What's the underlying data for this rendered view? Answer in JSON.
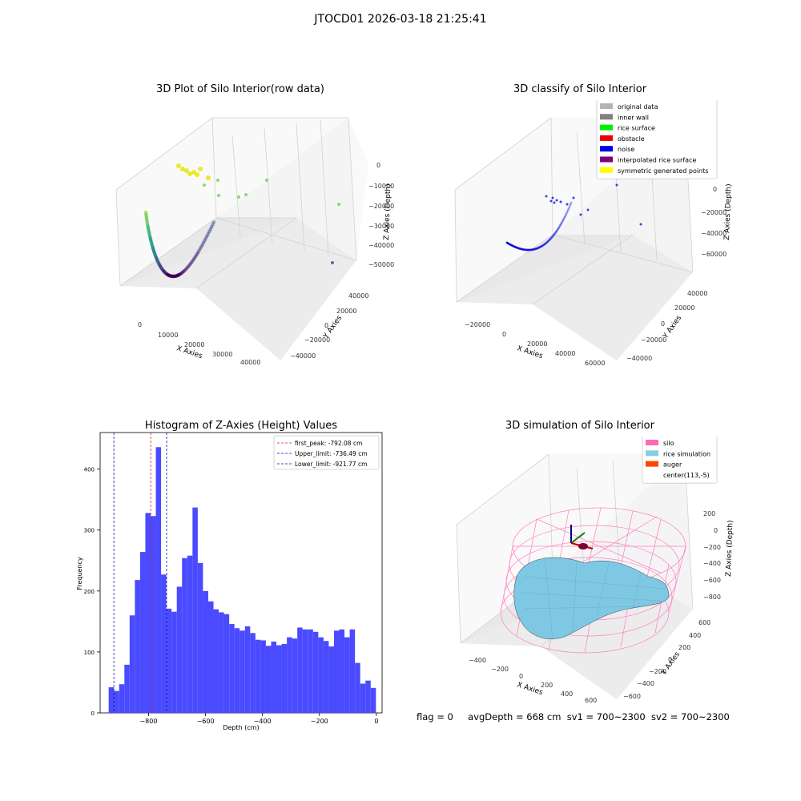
{
  "suptitle": "JTOCD01 2026-03-18 21:25:41",
  "colors": {
    "hist_bar": "#4a4aff",
    "peak_line": "#e02020",
    "limit_line": "#1010a0",
    "grid": "#d0d0d0",
    "pane": "#f2f2f2",
    "wire": "#ff80c0",
    "rice": "#7ec8e3"
  },
  "chart_data": [
    {
      "type": "scatter",
      "projection": "3d",
      "title": "3D Plot of Silo Interior(row data)",
      "xlabel": "X Axies",
      "ylabel": "Y Axies",
      "zlabel": "Z Axies (Depth)",
      "xticks": [
        "0",
        "10000",
        "20000",
        "30000",
        "40000"
      ],
      "yticks": [
        "40000",
        "20000",
        "0",
        "−20000",
        "−40000"
      ],
      "zticks": [
        "0",
        "−10000",
        "−20000",
        "−30000",
        "−40000",
        "−50000"
      ],
      "colormap": "viridis",
      "description_points": "arc of points with depth-coded color plus scattered outliers"
    },
    {
      "type": "scatter",
      "projection": "3d",
      "title": "3D classify of Silo Interior",
      "xlabel": "X Axies",
      "ylabel": "Y Axies",
      "zlabel": "Z Axies (Depth)",
      "xticks": [
        "−20000",
        "0",
        "20000",
        "40000",
        "60000"
      ],
      "yticks": [
        "40000",
        "20000",
        "0",
        "−20000",
        "−40000"
      ],
      "zticks": [
        "0",
        "−20000",
        "−40000",
        "−60000"
      ],
      "ztick_partial": "000",
      "legend": [
        {
          "label": "original data",
          "color": "#b4b4b4"
        },
        {
          "label": "inner wall",
          "color": "#808080"
        },
        {
          "label": "rice surface",
          "color": "#00ee00"
        },
        {
          "label": "obstacle",
          "color": "#ee0000"
        },
        {
          "label": "noise",
          "color": "#0000ee"
        },
        {
          "label": "interpolated rice surface",
          "color": "#800080"
        },
        {
          "label": "symmetric generated points",
          "color": "#ffff00"
        }
      ],
      "legend_position": "upper right"
    },
    {
      "type": "bar",
      "title": "Histogram of Z-Axies (Height) Values",
      "xlabel": "Depth (cm)",
      "ylabel": "Frequency",
      "xlim": [
        -970,
        20
      ],
      "ylim": [
        0,
        460
      ],
      "xticks": [
        -800,
        -600,
        -400,
        -200,
        0
      ],
      "xtick_labels": [
        "−800",
        "−600",
        "−400",
        "−200",
        "0"
      ],
      "yticks": [
        0,
        100,
        200,
        300,
        400
      ],
      "yticks_labels": [
        "0",
        "100",
        "200",
        "300",
        "400"
      ],
      "bin_start": -940,
      "bin_width": 18.4,
      "values": [
        42,
        36,
        47,
        79,
        160,
        218,
        264,
        328,
        323,
        436,
        227,
        171,
        166,
        207,
        254,
        258,
        337,
        246,
        200,
        183,
        170,
        165,
        162,
        146,
        139,
        135,
        142,
        131,
        120,
        119,
        110,
        117,
        111,
        113,
        124,
        122,
        140,
        137,
        137,
        133,
        124,
        118,
        109,
        135,
        137,
        124,
        137,
        82,
        48,
        53,
        41
      ],
      "lines": [
        {
          "x": -792.08,
          "label": "first_peak: -792.08 cm",
          "color": "#e02020"
        },
        {
          "x": -736.49,
          "label": "Upper_limit: -736.49 cm",
          "color": "#1010a0"
        },
        {
          "x": -921.77,
          "label": "Lower_limit: -921.77 cm",
          "color": "#1010a0"
        }
      ],
      "legend_position": "upper right"
    },
    {
      "type": "surface",
      "projection": "3d",
      "title": "3D simulation of Silo Interior",
      "xlabel": "X Axies",
      "ylabel": "Y Axies",
      "zlabel": "Z Axies (Depth)",
      "xticks": [
        "−400",
        "−200",
        "0",
        "200",
        "400",
        "600"
      ],
      "yticks": [
        "600",
        "400",
        "200",
        "0",
        "−200",
        "−400",
        "−600"
      ],
      "zticks": [
        "200",
        "0",
        "−200",
        "−400",
        "−600",
        "−800"
      ],
      "legend": [
        {
          "label": "silo",
          "color": "#ff69b4"
        },
        {
          "label": "rice simulation",
          "color": "#87cee0"
        },
        {
          "label": "auger",
          "color": "#ff4500"
        },
        {
          "label": "center(113,-5)",
          "color": ""
        }
      ],
      "legend_position": "upper right"
    }
  ],
  "footer": {
    "flag": "flag = 0",
    "avg": "avgDepth = 668 cm",
    "sv1": "sv1 = 700~2300",
    "sv2": "sv2 = 700~2300"
  }
}
